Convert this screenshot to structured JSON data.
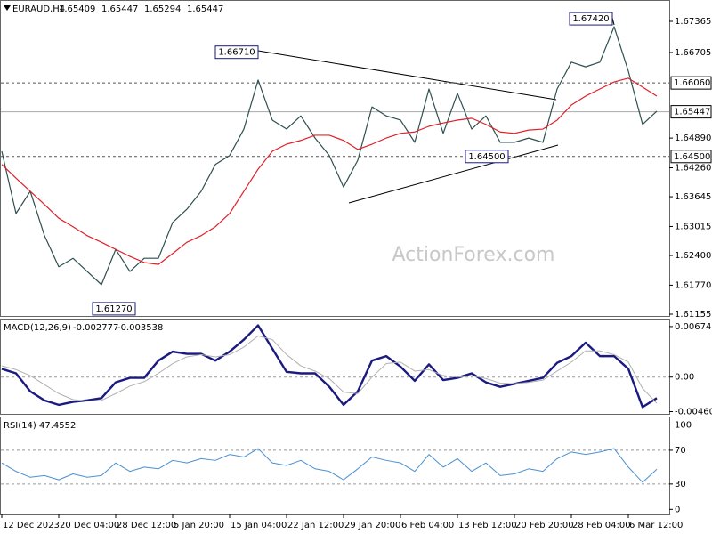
{
  "chart_data": [
    {
      "type": "line",
      "title": "EURAUD,H4",
      "readouts": [
        1.65409,
        1.65447,
        1.65294,
        1.65447
      ],
      "watermark": "ActionForex.com",
      "categories": [
        "12 Dec 2023",
        null,
        null,
        null,
        "20 Dec 04:00",
        null,
        null,
        null,
        "28 Dec 12:00",
        null,
        null,
        null,
        "5 Jan 20:00",
        null,
        null,
        null,
        "15 Jan 04:00",
        null,
        null,
        null,
        "22 Jan 12:00",
        null,
        null,
        null,
        "29 Jan 20:00",
        null,
        null,
        null,
        "6 Feb 04:00",
        null,
        null,
        null,
        "13 Feb 12:00",
        null,
        null,
        null,
        "20 Feb 20:00",
        null,
        null,
        null,
        "28 Feb 04:00",
        null,
        null,
        null,
        "6 Mar 12:00",
        null,
        null
      ],
      "series": [
        {
          "color": "#2f4f4f",
          "values": [
            1.6461,
            1.6329,
            1.6376,
            1.6282,
            1.6216,
            1.6234,
            1.6206,
            1.6178,
            1.6253,
            1.6206,
            1.6234,
            1.6234,
            1.631,
            1.6338,
            1.6376,
            1.6433,
            1.6452,
            1.6508,
            1.6612,
            1.6527,
            1.6508,
            1.6536,
            1.6489,
            1.6452,
            1.6385,
            1.6442,
            1.6555,
            1.6536,
            1.6527,
            1.648,
            1.6593,
            1.6499,
            1.6584,
            1.6508,
            1.6536,
            1.648,
            1.648,
            1.6489,
            1.648,
            1.6593,
            1.665,
            1.664,
            1.665,
            1.6725,
            1.6631,
            1.6518,
            1.6546
          ]
        },
        {
          "color": "#e0202a",
          "values": [
            1.6433,
            1.6404,
            1.6376,
            1.6348,
            1.6319,
            1.6301,
            1.6282,
            1.6268,
            1.6253,
            1.6238,
            1.6225,
            1.6221,
            1.6244,
            1.6268,
            1.6282,
            1.6301,
            1.6329,
            1.6376,
            1.6423,
            1.6461,
            1.6476,
            1.6484,
            1.6495,
            1.6495,
            1.6484,
            1.6465,
            1.6476,
            1.6489,
            1.6499,
            1.6502,
            1.6514,
            1.6521,
            1.6527,
            1.6531,
            1.6518,
            1.6502,
            1.6499,
            1.6506,
            1.6508,
            1.6527,
            1.6559,
            1.6578,
            1.6593,
            1.6608,
            1.6616,
            1.6597,
            1.6578
          ]
        }
      ],
      "ylim": [
        1.61117,
        1.67818
      ],
      "yticks": [
        1.67365,
        1.66705,
        {
          "value": 1.6489,
          "label": "1.64890"
        },
        {
          "value": 1.6426,
          "label": "1.64260"
        },
        1.63645,
        1.63015,
        {
          "value": 1.624,
          "label": "1.62400"
        },
        {
          "value": 1.6177,
          "label": "1.61770"
        },
        1.61155
      ],
      "markers": [
        {
          "value": 1.6606,
          "label": "1.66060",
          "line": "dashed"
        },
        {
          "value": 1.65447,
          "label": "1.65447",
          "line": "solid"
        },
        {
          "value": 1.645,
          "label": "1.64500",
          "line": "dashed"
        }
      ],
      "annotations": [
        {
          "value": 1.6742,
          "label": "1.67420"
        },
        {
          "value": 1.6671,
          "label": "1.66710"
        },
        {
          "value": 1.6127,
          "label": "1.61270"
        },
        {
          "value": 1.645,
          "label": "1.64500"
        }
      ]
    },
    {
      "type": "line",
      "title": "MACD(12,26,9)",
      "readouts": [
        -0.002777,
        -0.003538
      ],
      "series": [
        {
          "color": "#1a1a80",
          "values": [
            0.0011,
            0.0005,
            -0.0019,
            -0.0031,
            -0.0037,
            -0.0033,
            -0.0031,
            -0.0028,
            -0.0007,
            -0.0001,
            -0.0001,
            0.0022,
            0.0034,
            0.0031,
            0.0031,
            0.0022,
            0.0034,
            0.005,
            0.0069,
            0.0038,
            0.0007,
            0.0005,
            0.0005,
            -0.0013,
            -0.0037,
            -0.0019,
            0.0022,
            0.0028,
            0.0014,
            -0.0005,
            0.0017,
            -0.0004,
            -0.0001,
            0.0005,
            -0.0007,
            -0.0013,
            -0.0009,
            -0.0005,
            -0.0001,
            0.0019,
            0.0028,
            0.0046,
            0.0028,
            0.0028,
            0.0011,
            -0.004,
            -0.0028
          ]
        },
        {
          "color": "#b0b0b0",
          "values": [
            0.0015,
            0.001,
            0.0002,
            -0.001,
            -0.0022,
            -0.003,
            -0.0032,
            -0.0031,
            -0.0022,
            -0.0012,
            -0.0006,
            0.0005,
            0.0018,
            0.0027,
            0.003,
            0.0027,
            0.003,
            0.004,
            0.0055,
            0.005,
            0.003,
            0.0015,
            0.0008,
            -0.0002,
            -0.002,
            -0.0022,
            0.0,
            0.0018,
            0.002,
            0.0008,
            0.001,
            0.0002,
            0.0,
            0.0002,
            -0.0002,
            -0.0008,
            -0.0009,
            -0.0007,
            -0.0004,
            0.0008,
            0.002,
            0.0035,
            0.0035,
            0.003,
            0.002,
            -0.0015,
            -0.0035
          ]
        }
      ],
      "ylim": [
        -0.0049,
        0.0078
      ],
      "yticks": [
        0.006743,
        {
          "value": 0,
          "label": "0.00"
        },
        -0.004603
      ],
      "levels": [
        0
      ]
    },
    {
      "type": "line",
      "title": "RSI(14)",
      "readouts": [
        47.4552
      ],
      "series": [
        {
          "color": "#4a90d0",
          "values": [
            55,
            45,
            38,
            40,
            35,
            42,
            38,
            40,
            55,
            45,
            50,
            48,
            58,
            55,
            60,
            58,
            65,
            62,
            72,
            55,
            52,
            58,
            48,
            45,
            35,
            48,
            62,
            58,
            55,
            45,
            65,
            50,
            60,
            45,
            55,
            40,
            42,
            48,
            45,
            60,
            68,
            65,
            68,
            72,
            50,
            32,
            47.5
          ]
        }
      ],
      "ylim": [
        -6,
        110
      ],
      "yticks": [
        100,
        70,
        30,
        0
      ],
      "levels": [
        70,
        30
      ]
    }
  ]
}
